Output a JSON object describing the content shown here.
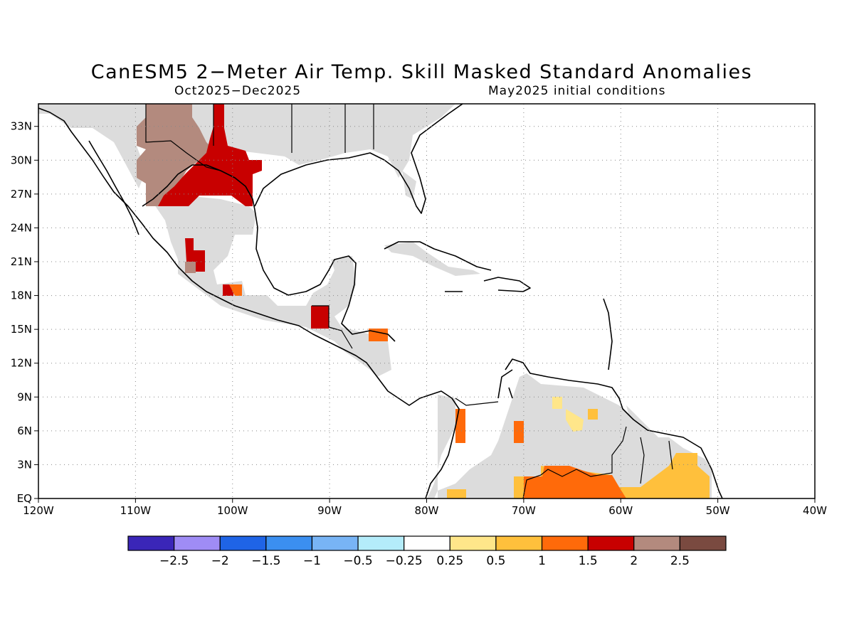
{
  "title": "CanESM5 2−Meter Air Temp. Skill Masked Standard Anomalies",
  "subtitle_left": "Oct2025−Dec2025",
  "subtitle_right": "May2025 initial conditions",
  "map": {
    "lon_range": [
      -120,
      -40
    ],
    "lat_range": [
      0,
      35
    ],
    "lon_ticks": [
      "120W",
      "110W",
      "100W",
      "90W",
      "80W",
      "70W",
      "60W",
      "50W",
      "40W"
    ],
    "lat_ticks": [
      "EQ",
      "3N",
      "6N",
      "9N",
      "12N",
      "15N",
      "18N",
      "21N",
      "24N",
      "27N",
      "30N",
      "33N"
    ],
    "grid": "dotted",
    "colors": {
      "masked": "#dcdcdc",
      "coast": "#000000"
    }
  },
  "colorbar": {
    "colors": [
      "#3a26b8",
      "#9f8cf5",
      "#1f64e6",
      "#3b8ff0",
      "#78b4f5",
      "#b4ecfa",
      "#ffffff",
      "#ffe68a",
      "#ffc03c",
      "#ff6a0a",
      "#c80000",
      "#b38a7e",
      "#7a4a40"
    ],
    "labels": [
      "−2.5",
      "−2",
      "−1.5",
      "−1",
      "−0.5",
      "−0.25",
      "0.25",
      "0.5",
      "1",
      "1.5",
      "2",
      "2.5"
    ]
  }
}
